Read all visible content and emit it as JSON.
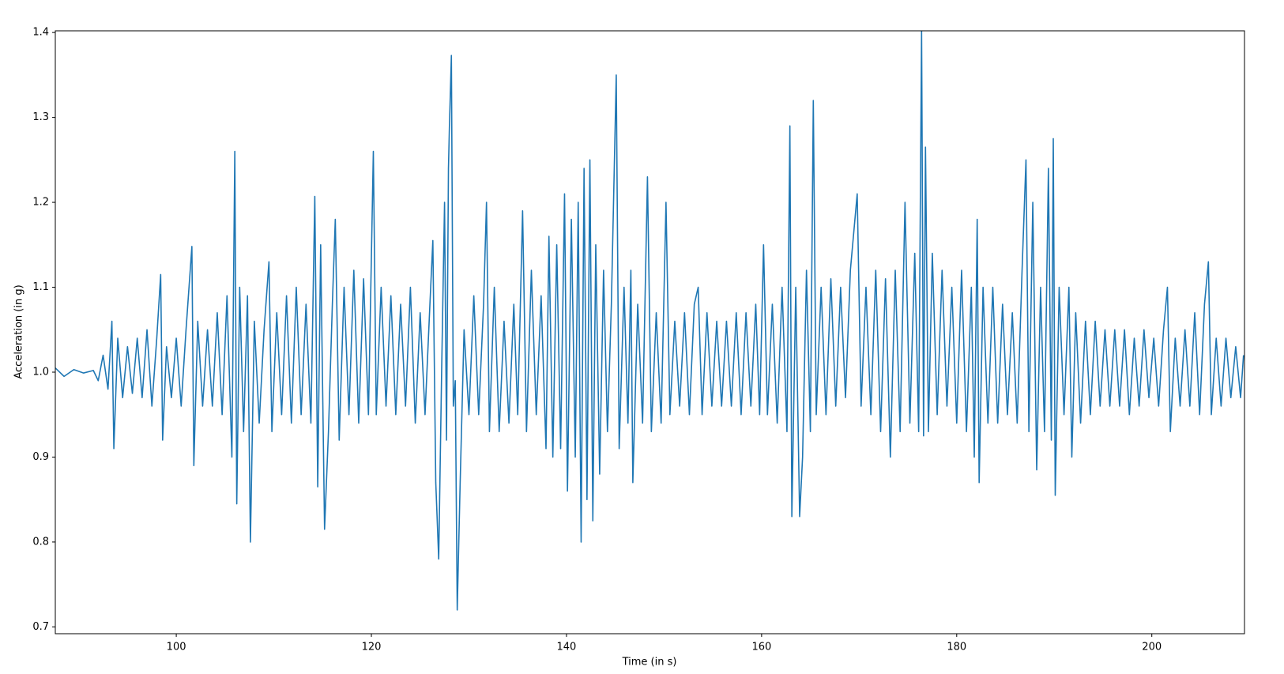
{
  "chart_data": {
    "type": "line",
    "xlabel": "Time (in s)",
    "ylabel": "Acceleration (in g)",
    "xlim": [
      87.6,
      209.5
    ],
    "ylim": [
      0.692,
      1.402
    ],
    "xticks": [
      100,
      120,
      140,
      160,
      180,
      200
    ],
    "yticks": [
      0.7,
      0.8,
      0.9,
      {
        "value": 1,
        "label": "1.0"
      },
      1.1,
      1.2,
      1.3,
      1.4
    ],
    "grid": false,
    "series": [
      {
        "color": "#1f77b4",
        "x": [
          87.6,
          88.5,
          89.5,
          90.5,
          91.5,
          92,
          92.5,
          93,
          93.4,
          93.6,
          94,
          94.5,
          95,
          95.5,
          96,
          96.5,
          97,
          97.5,
          98,
          98.4,
          98.6,
          99,
          99.5,
          100,
          100.5,
          101,
          101.6,
          101.8,
          102.2,
          102.7,
          103.2,
          103.7,
          104.2,
          104.7,
          105.2,
          105.7,
          106,
          106.2,
          106.5,
          106.9,
          107.3,
          107.6,
          108,
          108.5,
          109,
          109.5,
          109.8,
          110.3,
          110.8,
          111.3,
          111.8,
          112.3,
          112.8,
          113.3,
          113.8,
          114.2,
          114.5,
          114.8,
          115.2,
          115.6,
          116,
          116.3,
          116.7,
          117.2,
          117.7,
          118.2,
          118.7,
          119.2,
          119.7,
          120.2,
          120.5,
          121,
          121.5,
          122,
          122.5,
          123,
          123.5,
          124,
          124.5,
          125,
          125.5,
          126,
          126.3,
          126.6,
          126.9,
          127.2,
          127.5,
          127.7,
          127.9,
          128,
          128.2,
          128.4,
          128.6,
          128.8,
          129.1,
          129.5,
          130,
          130.5,
          131,
          131.5,
          131.8,
          132.1,
          132.6,
          133.1,
          133.6,
          134.1,
          134.6,
          135,
          135.5,
          135.9,
          136.4,
          136.9,
          137.4,
          137.9,
          138.2,
          138.6,
          139,
          139.4,
          139.8,
          140.1,
          140.5,
          140.9,
          141.2,
          141.5,
          141.8,
          142.1,
          142.4,
          142.7,
          143,
          143.4,
          143.8,
          144.2,
          144.6,
          145.1,
          145.4,
          145.9,
          146.3,
          146.6,
          146.8,
          147.3,
          147.8,
          148.3,
          148.7,
          149.2,
          149.7,
          150.2,
          150.6,
          151.1,
          151.6,
          152.1,
          152.6,
          153.1,
          153.5,
          153.9,
          154.4,
          154.9,
          155.4,
          155.9,
          156.4,
          156.9,
          157.4,
          157.9,
          158.4,
          158.9,
          159.4,
          159.8,
          160.2,
          160.6,
          161.1,
          161.6,
          162.1,
          162.6,
          162.9,
          163.1,
          163.5,
          163.9,
          164.2,
          164.6,
          165,
          165.3,
          165.6,
          166.1,
          166.6,
          167.1,
          167.6,
          168.1,
          168.6,
          169.1,
          169.8,
          170.2,
          170.7,
          171.2,
          171.7,
          172.2,
          172.7,
          173.2,
          173.7,
          174.2,
          174.7,
          175.2,
          175.7,
          176.1,
          176.4,
          176.6,
          176.8,
          177.1,
          177.5,
          178,
          178.5,
          179,
          179.5,
          180,
          180.5,
          181,
          181.5,
          181.8,
          182.1,
          182.3,
          182.7,
          183.2,
          183.7,
          184.2,
          184.7,
          185.2,
          185.7,
          186.2,
          186.7,
          187.1,
          187.4,
          187.8,
          188.2,
          188.6,
          189,
          189.4,
          189.7,
          189.9,
          190.1,
          190.5,
          191,
          191.5,
          191.8,
          192.2,
          192.7,
          193.2,
          193.7,
          194.2,
          194.7,
          195.2,
          195.7,
          196.2,
          196.7,
          197.2,
          197.7,
          198.2,
          198.7,
          199.2,
          199.7,
          200.2,
          200.7,
          201.2,
          201.6,
          201.9,
          202.4,
          202.9,
          203.4,
          203.9,
          204.4,
          204.9,
          205.4,
          205.8,
          206.1,
          206.6,
          207.1,
          207.6,
          208.1,
          208.6,
          209.1,
          209.4
        ],
        "values": [
          1.005,
          0.995,
          1.003,
          0.999,
          1.002,
          0.99,
          1.02,
          0.98,
          1.06,
          0.91,
          1.04,
          0.97,
          1.03,
          0.975,
          1.04,
          0.97,
          1.05,
          0.96,
          1.04,
          1.115,
          0.92,
          1.03,
          0.97,
          1.04,
          0.96,
          1.05,
          1.148,
          0.89,
          1.06,
          0.96,
          1.05,
          0.96,
          1.07,
          0.95,
          1.09,
          0.9,
          1.26,
          0.845,
          1.1,
          0.93,
          1.09,
          0.8,
          1.06,
          0.94,
          1.05,
          1.13,
          0.93,
          1.07,
          0.95,
          1.09,
          0.94,
          1.1,
          0.95,
          1.08,
          0.94,
          1.207,
          0.865,
          1.15,
          0.815,
          0.93,
          1.08,
          1.18,
          0.92,
          1.1,
          0.95,
          1.12,
          0.94,
          1.11,
          0.95,
          1.26,
          0.95,
          1.1,
          0.96,
          1.09,
          0.95,
          1.08,
          0.96,
          1.1,
          0.94,
          1.07,
          0.95,
          1.08,
          1.155,
          0.87,
          0.78,
          1.0,
          1.2,
          0.92,
          1.24,
          1.29,
          1.373,
          0.96,
          0.99,
          0.72,
          0.87,
          1.05,
          0.95,
          1.09,
          0.95,
          1.08,
          1.2,
          0.93,
          1.1,
          0.93,
          1.06,
          0.94,
          1.08,
          0.95,
          1.19,
          0.93,
          1.12,
          0.95,
          1.09,
          0.91,
          1.16,
          0.9,
          1.15,
          0.91,
          1.21,
          0.86,
          1.18,
          0.9,
          1.2,
          0.8,
          1.24,
          0.85,
          1.25,
          0.825,
          1.15,
          0.88,
          1.12,
          0.93,
          1.08,
          1.35,
          0.91,
          1.1,
          0.94,
          1.12,
          0.87,
          1.08,
          0.94,
          1.23,
          0.93,
          1.07,
          0.94,
          1.2,
          0.95,
          1.06,
          0.96,
          1.07,
          0.95,
          1.08,
          1.1,
          0.95,
          1.07,
          0.96,
          1.06,
          0.96,
          1.06,
          0.96,
          1.07,
          0.95,
          1.07,
          0.96,
          1.08,
          0.95,
          1.15,
          0.95,
          1.08,
          0.94,
          1.1,
          0.93,
          1.29,
          0.83,
          1.1,
          0.83,
          0.9,
          1.12,
          0.93,
          1.32,
          0.95,
          1.1,
          0.95,
          1.11,
          0.96,
          1.1,
          0.97,
          1.12,
          1.21,
          0.96,
          1.1,
          0.95,
          1.12,
          0.93,
          1.11,
          0.9,
          1.12,
          0.93,
          1.2,
          0.94,
          1.14,
          0.93,
          1.402,
          0.925,
          1.265,
          0.93,
          1.14,
          0.95,
          1.12,
          0.96,
          1.1,
          0.94,
          1.12,
          0.93,
          1.1,
          0.9,
          1.18,
          0.87,
          1.1,
          0.94,
          1.1,
          0.94,
          1.08,
          0.95,
          1.07,
          0.94,
          1.12,
          1.25,
          0.93,
          1.2,
          0.885,
          1.1,
          0.93,
          1.24,
          0.92,
          1.275,
          0.855,
          1.1,
          0.95,
          1.1,
          0.9,
          1.07,
          0.94,
          1.06,
          0.95,
          1.06,
          0.96,
          1.05,
          0.96,
          1.05,
          0.96,
          1.05,
          0.95,
          1.04,
          0.96,
          1.05,
          0.97,
          1.04,
          0.96,
          1.05,
          1.1,
          0.93,
          1.04,
          0.96,
          1.05,
          0.96,
          1.07,
          0.95,
          1.08,
          1.13,
          0.95,
          1.04,
          0.96,
          1.04,
          0.97,
          1.03,
          0.97,
          1.02
        ]
      }
    ]
  }
}
